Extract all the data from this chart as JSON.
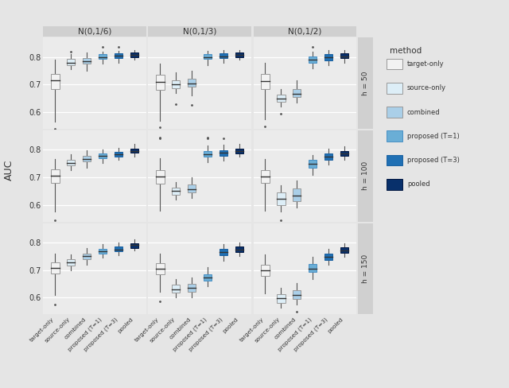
{
  "col_labels": [
    "N(0,1/6)",
    "N(0,1/3)",
    "N(0,1/2)"
  ],
  "row_labels": [
    "h = 50",
    "h = 100",
    "h = 150"
  ],
  "ylabel": "AUC",
  "methods": [
    "target-only",
    "source-only",
    "combined",
    "proposed (T=1)",
    "proposed (T=3)",
    "pooled"
  ],
  "colors": [
    "#f2f2f2",
    "#ddeef7",
    "#aacfe8",
    "#6aaed6",
    "#2070b4",
    "#08306b"
  ],
  "edge_colors": [
    "#999999",
    "#999999",
    "#999999",
    "#4a90c4",
    "#1a60a0",
    "#041840"
  ],
  "ylim": [
    0.54,
    0.87
  ],
  "yticks": [
    0.6,
    0.7,
    0.8
  ],
  "box_data": {
    "row0_col0": {
      "target-only": {
        "whislo": 0.565,
        "q1": 0.685,
        "med": 0.715,
        "q3": 0.74,
        "whishi": 0.79,
        "fliers_low": [
          0.54
        ],
        "fliers_high": []
      },
      "source-only": {
        "whislo": 0.755,
        "q1": 0.77,
        "med": 0.78,
        "q3": 0.792,
        "whishi": 0.81,
        "fliers_low": [],
        "fliers_high": [
          0.82
        ]
      },
      "combined": {
        "whislo": 0.75,
        "q1": 0.775,
        "med": 0.785,
        "q3": 0.797,
        "whishi": 0.815,
        "fliers_low": [],
        "fliers_high": []
      },
      "proposed (T=1)": {
        "whislo": 0.775,
        "q1": 0.793,
        "med": 0.8,
        "q3": 0.81,
        "whishi": 0.82,
        "fliers_low": [],
        "fliers_high": [
          0.835
        ]
      },
      "proposed (T=3)": {
        "whislo": 0.78,
        "q1": 0.797,
        "med": 0.804,
        "q3": 0.814,
        "whishi": 0.822,
        "fliers_low": [],
        "fliers_high": [
          0.835
        ]
      },
      "pooled": {
        "whislo": 0.79,
        "q1": 0.8,
        "med": 0.807,
        "q3": 0.817,
        "whishi": 0.826,
        "fliers_low": [],
        "fliers_high": []
      }
    },
    "row0_col1": {
      "target-only": {
        "whislo": 0.57,
        "q1": 0.68,
        "med": 0.71,
        "q3": 0.735,
        "whishi": 0.775,
        "fliers_low": [
          0.545
        ],
        "fliers_high": []
      },
      "source-only": {
        "whislo": 0.67,
        "q1": 0.688,
        "med": 0.7,
        "q3": 0.715,
        "whishi": 0.745,
        "fliers_low": [
          0.63
        ],
        "fliers_high": []
      },
      "combined": {
        "whislo": 0.66,
        "q1": 0.693,
        "med": 0.705,
        "q3": 0.72,
        "whishi": 0.75,
        "fliers_low": [
          0.625
        ],
        "fliers_high": []
      },
      "proposed (T=1)": {
        "whislo": 0.77,
        "q1": 0.792,
        "med": 0.8,
        "q3": 0.81,
        "whishi": 0.822,
        "fliers_low": [],
        "fliers_high": []
      },
      "proposed (T=3)": {
        "whislo": 0.778,
        "q1": 0.795,
        "med": 0.803,
        "q3": 0.812,
        "whishi": 0.825,
        "fliers_low": [],
        "fliers_high": []
      },
      "pooled": {
        "whislo": 0.79,
        "q1": 0.8,
        "med": 0.807,
        "q3": 0.817,
        "whishi": 0.826,
        "fliers_low": [],
        "fliers_high": []
      }
    },
    "row0_col2": {
      "target-only": {
        "whislo": 0.575,
        "q1": 0.685,
        "med": 0.712,
        "q3": 0.738,
        "whishi": 0.778,
        "fliers_low": [
          0.55
        ],
        "fliers_high": []
      },
      "source-only": {
        "whislo": 0.62,
        "q1": 0.638,
        "med": 0.65,
        "q3": 0.665,
        "whishi": 0.685,
        "fliers_low": [
          0.595
        ],
        "fliers_high": []
      },
      "combined": {
        "whislo": 0.635,
        "q1": 0.655,
        "med": 0.667,
        "q3": 0.683,
        "whishi": 0.715,
        "fliers_low": [],
        "fliers_high": []
      },
      "proposed (T=1)": {
        "whislo": 0.76,
        "q1": 0.779,
        "med": 0.79,
        "q3": 0.803,
        "whishi": 0.82,
        "fliers_low": [],
        "fliers_high": [
          0.835
        ]
      },
      "proposed (T=3)": {
        "whislo": 0.77,
        "q1": 0.788,
        "med": 0.798,
        "q3": 0.81,
        "whishi": 0.825,
        "fliers_low": [],
        "fliers_high": []
      },
      "pooled": {
        "whislo": 0.778,
        "q1": 0.795,
        "med": 0.802,
        "q3": 0.813,
        "whishi": 0.825,
        "fliers_low": [],
        "fliers_high": []
      }
    },
    "row1_col0": {
      "target-only": {
        "whislo": 0.575,
        "q1": 0.68,
        "med": 0.707,
        "q3": 0.73,
        "whishi": 0.765,
        "fliers_low": [
          0.545
        ],
        "fliers_high": []
      },
      "source-only": {
        "whislo": 0.725,
        "q1": 0.742,
        "med": 0.753,
        "q3": 0.763,
        "whishi": 0.783,
        "fliers_low": [],
        "fliers_high": []
      },
      "combined": {
        "whislo": 0.735,
        "q1": 0.758,
        "med": 0.767,
        "q3": 0.778,
        "whishi": 0.798,
        "fliers_low": [],
        "fliers_high": []
      },
      "proposed (T=1)": {
        "whislo": 0.752,
        "q1": 0.768,
        "med": 0.777,
        "q3": 0.786,
        "whishi": 0.8,
        "fliers_low": [],
        "fliers_high": []
      },
      "proposed (T=3)": {
        "whislo": 0.762,
        "q1": 0.776,
        "med": 0.784,
        "q3": 0.793,
        "whishi": 0.808,
        "fliers_low": [],
        "fliers_high": []
      },
      "pooled": {
        "whislo": 0.775,
        "q1": 0.788,
        "med": 0.796,
        "q3": 0.805,
        "whishi": 0.82,
        "fliers_low": [],
        "fliers_high": []
      }
    },
    "row1_col1": {
      "target-only": {
        "whislo": 0.58,
        "q1": 0.678,
        "med": 0.703,
        "q3": 0.725,
        "whishi": 0.768,
        "fliers_low": [],
        "fliers_high": [
          0.84,
          0.845
        ]
      },
      "source-only": {
        "whislo": 0.62,
        "q1": 0.638,
        "med": 0.65,
        "q3": 0.663,
        "whishi": 0.682,
        "fliers_low": [],
        "fliers_high": []
      },
      "combined": {
        "whislo": 0.625,
        "q1": 0.645,
        "med": 0.658,
        "q3": 0.673,
        "whishi": 0.7,
        "fliers_low": [],
        "fliers_high": []
      },
      "proposed (T=1)": {
        "whislo": 0.755,
        "q1": 0.775,
        "med": 0.785,
        "q3": 0.796,
        "whishi": 0.815,
        "fliers_low": [],
        "fliers_high": [
          0.84,
          0.845
        ]
      },
      "proposed (T=3)": {
        "whislo": 0.76,
        "q1": 0.779,
        "med": 0.788,
        "q3": 0.799,
        "whishi": 0.818,
        "fliers_low": [],
        "fliers_high": [
          0.84
        ]
      },
      "pooled": {
        "whislo": 0.775,
        "q1": 0.787,
        "med": 0.795,
        "q3": 0.803,
        "whishi": 0.82,
        "fliers_low": [],
        "fliers_high": []
      }
    },
    "row1_col2": {
      "target-only": {
        "whislo": 0.58,
        "q1": 0.68,
        "med": 0.703,
        "q3": 0.725,
        "whishi": 0.765,
        "fliers_low": [],
        "fliers_high": []
      },
      "source-only": {
        "whislo": 0.575,
        "q1": 0.6,
        "med": 0.622,
        "q3": 0.645,
        "whishi": 0.67,
        "fliers_low": [
          0.545
        ],
        "fliers_high": []
      },
      "combined": {
        "whislo": 0.59,
        "q1": 0.615,
        "med": 0.635,
        "q3": 0.66,
        "whishi": 0.69,
        "fliers_low": [],
        "fliers_high": []
      },
      "proposed (T=1)": {
        "whislo": 0.71,
        "q1": 0.735,
        "med": 0.748,
        "q3": 0.762,
        "whishi": 0.782,
        "fliers_low": [],
        "fliers_high": []
      },
      "proposed (T=3)": {
        "whislo": 0.745,
        "q1": 0.764,
        "med": 0.775,
        "q3": 0.786,
        "whishi": 0.803,
        "fliers_low": [],
        "fliers_high": []
      },
      "pooled": {
        "whislo": 0.762,
        "q1": 0.778,
        "med": 0.787,
        "q3": 0.796,
        "whishi": 0.812,
        "fliers_low": [],
        "fliers_high": []
      }
    },
    "row2_col0": {
      "target-only": {
        "whislo": 0.61,
        "q1": 0.688,
        "med": 0.707,
        "q3": 0.728,
        "whishi": 0.76,
        "fliers_low": [
          0.575
        ],
        "fliers_high": []
      },
      "source-only": {
        "whislo": 0.7,
        "q1": 0.717,
        "med": 0.728,
        "q3": 0.74,
        "whishi": 0.758,
        "fliers_low": [],
        "fliers_high": []
      },
      "combined": {
        "whislo": 0.72,
        "q1": 0.74,
        "med": 0.75,
        "q3": 0.76,
        "whishi": 0.78,
        "fliers_low": [],
        "fliers_high": []
      },
      "proposed (T=1)": {
        "whislo": 0.745,
        "q1": 0.76,
        "med": 0.768,
        "q3": 0.778,
        "whishi": 0.795,
        "fliers_low": [],
        "fliers_high": []
      },
      "proposed (T=3)": {
        "whislo": 0.755,
        "q1": 0.768,
        "med": 0.775,
        "q3": 0.785,
        "whishi": 0.8,
        "fliers_low": [],
        "fliers_high": []
      },
      "pooled": {
        "whislo": 0.77,
        "q1": 0.78,
        "med": 0.79,
        "q3": 0.798,
        "whishi": 0.81,
        "fliers_low": [],
        "fliers_high": []
      }
    },
    "row2_col1": {
      "target-only": {
        "whislo": 0.62,
        "q1": 0.685,
        "med": 0.705,
        "q3": 0.726,
        "whishi": 0.76,
        "fliers_low": [
          0.588
        ],
        "fliers_high": []
      },
      "source-only": {
        "whislo": 0.6,
        "q1": 0.618,
        "med": 0.63,
        "q3": 0.646,
        "whishi": 0.668,
        "fliers_low": [],
        "fliers_high": []
      },
      "combined": {
        "whislo": 0.6,
        "q1": 0.622,
        "med": 0.636,
        "q3": 0.65,
        "whishi": 0.672,
        "fliers_low": [],
        "fliers_high": []
      },
      "proposed (T=1)": {
        "whislo": 0.642,
        "q1": 0.662,
        "med": 0.673,
        "q3": 0.686,
        "whishi": 0.71,
        "fliers_low": [],
        "fliers_high": []
      },
      "proposed (T=3)": {
        "whislo": 0.735,
        "q1": 0.755,
        "med": 0.765,
        "q3": 0.776,
        "whishi": 0.795,
        "fliers_low": [],
        "fliers_high": []
      },
      "pooled": {
        "whislo": 0.752,
        "q1": 0.765,
        "med": 0.773,
        "q3": 0.784,
        "whishi": 0.8,
        "fliers_low": [],
        "fliers_high": []
      }
    },
    "row2_col2": {
      "target-only": {
        "whislo": 0.615,
        "q1": 0.68,
        "med": 0.698,
        "q3": 0.72,
        "whishi": 0.758,
        "fliers_low": [],
        "fliers_high": []
      },
      "source-only": {
        "whislo": 0.565,
        "q1": 0.582,
        "med": 0.597,
        "q3": 0.613,
        "whishi": 0.635,
        "fliers_low": [],
        "fliers_high": []
      },
      "combined": {
        "whislo": 0.575,
        "q1": 0.595,
        "med": 0.61,
        "q3": 0.627,
        "whishi": 0.652,
        "fliers_low": [
          0.55
        ],
        "fliers_high": []
      },
      "proposed (T=1)": {
        "whislo": 0.668,
        "q1": 0.692,
        "med": 0.706,
        "q3": 0.722,
        "whishi": 0.748,
        "fliers_low": [],
        "fliers_high": []
      },
      "proposed (T=3)": {
        "whislo": 0.718,
        "q1": 0.737,
        "med": 0.748,
        "q3": 0.76,
        "whishi": 0.778,
        "fliers_low": [],
        "fliers_high": []
      },
      "pooled": {
        "whislo": 0.748,
        "q1": 0.762,
        "med": 0.77,
        "q3": 0.782,
        "whishi": 0.798,
        "fliers_low": [],
        "fliers_high": []
      }
    }
  }
}
